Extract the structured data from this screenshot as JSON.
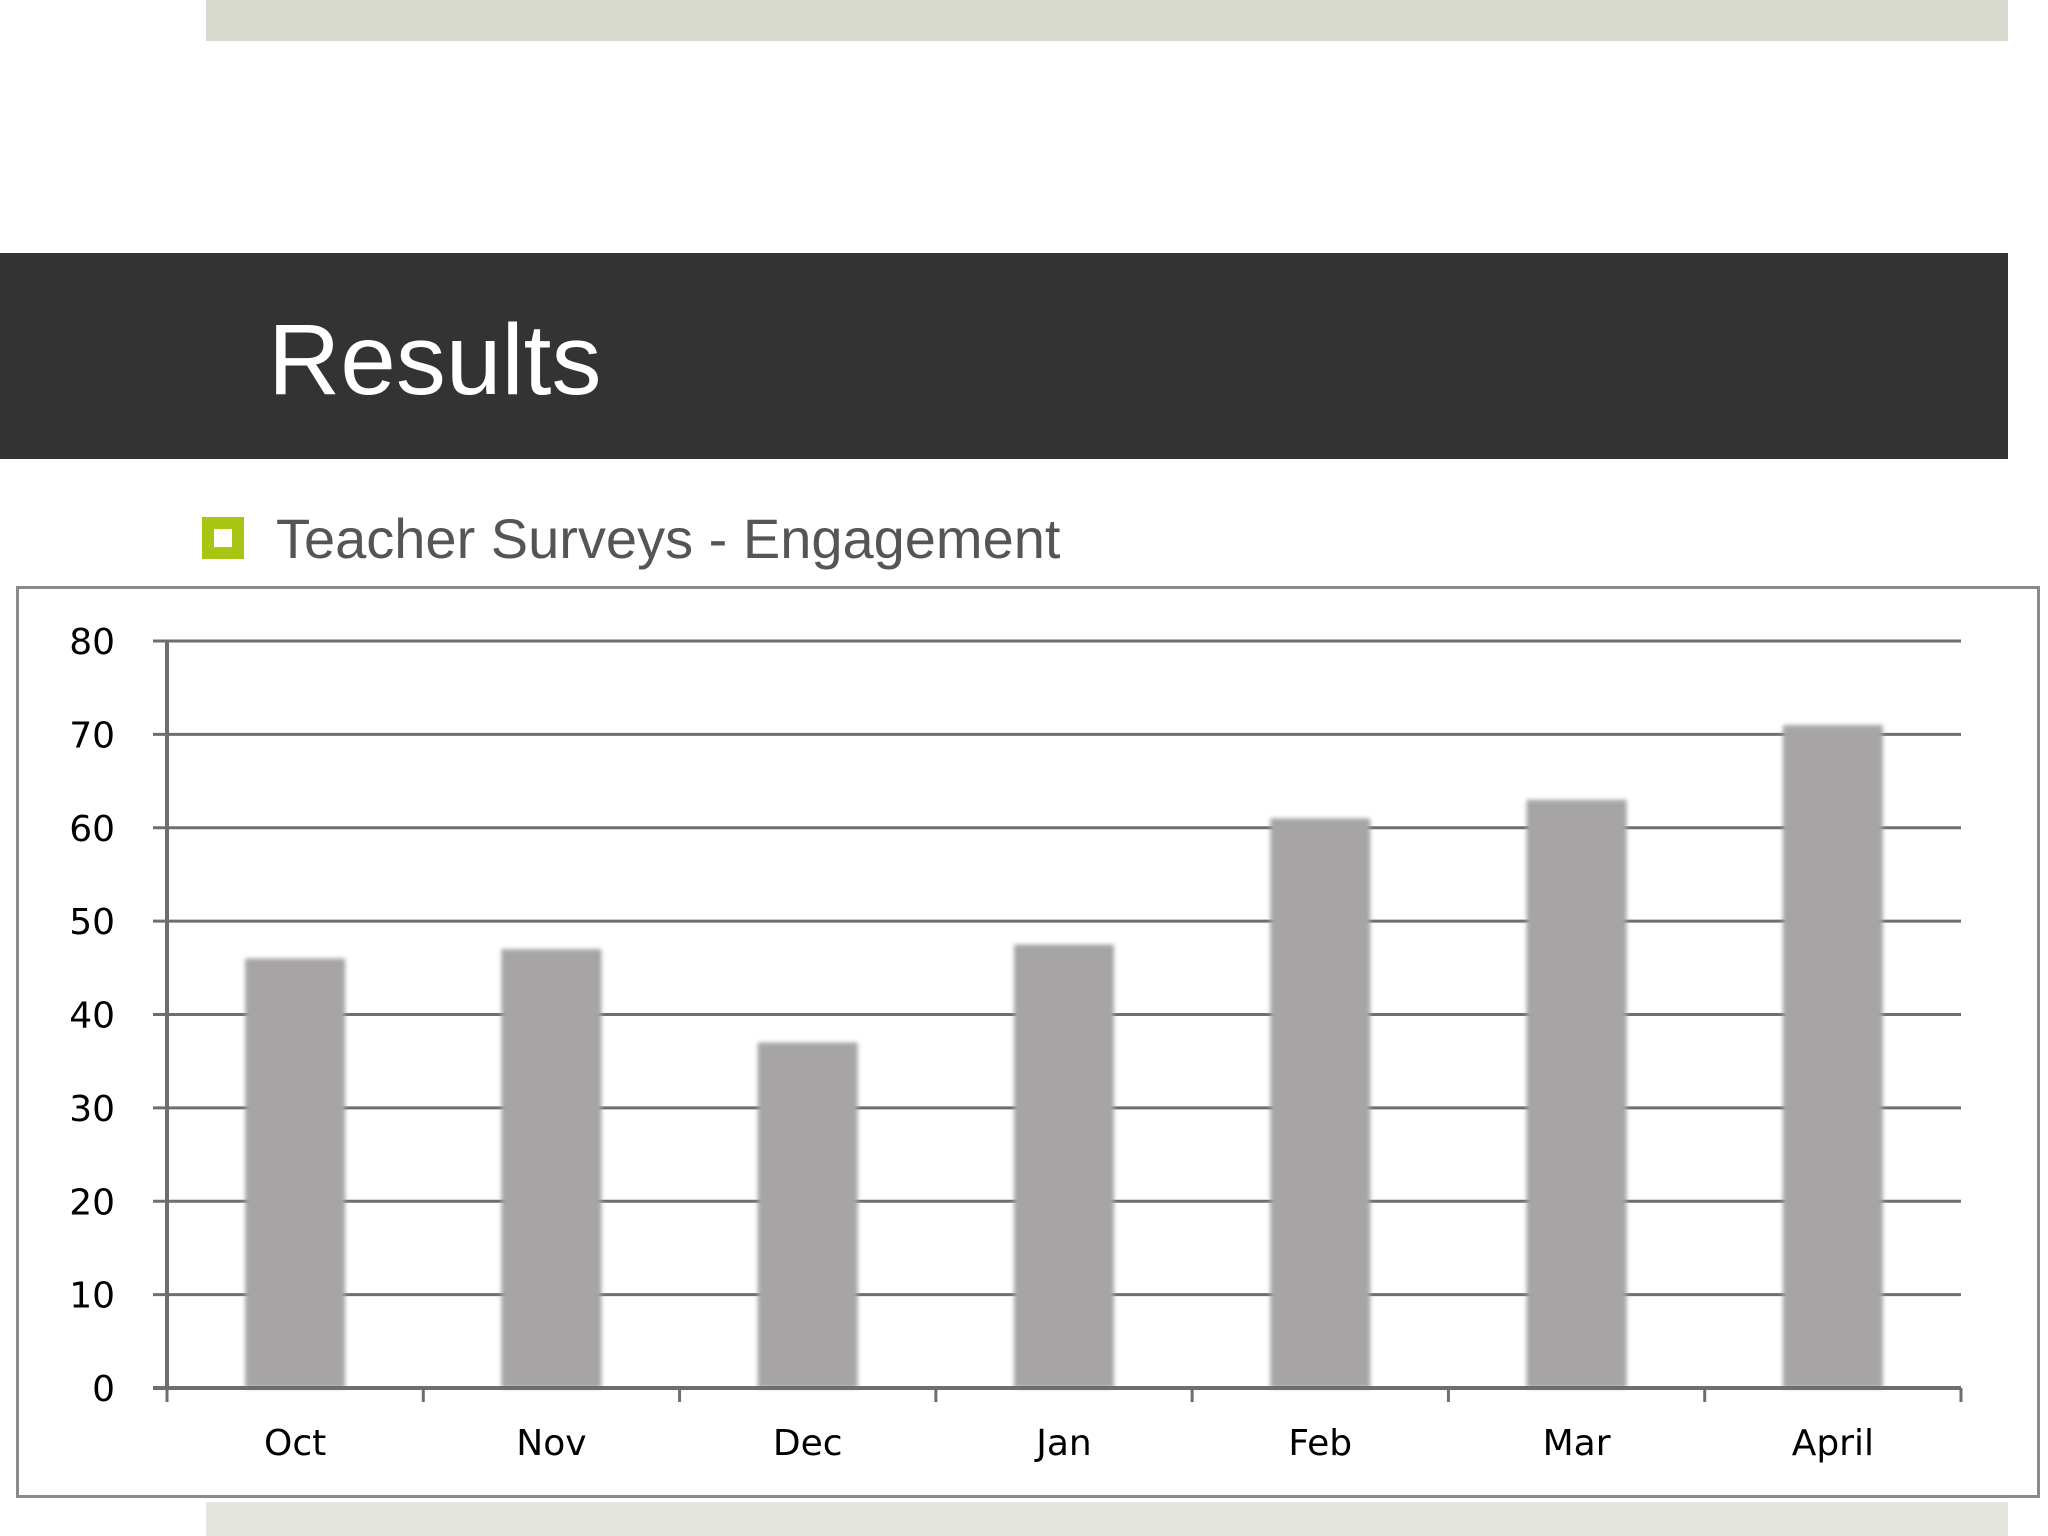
{
  "slide": {
    "title": "Results",
    "bullet_text": "Teacher Surveys - Engagement"
  },
  "colors": {
    "title_bar": "#333333",
    "accent": "#a7c613",
    "bar": "#a6a4a5",
    "gridline": "#6e6e6e"
  },
  "chart_data": {
    "type": "bar",
    "categories": [
      "Oct",
      "Nov",
      "Dec",
      "Jan",
      "Feb",
      "Mar",
      "April"
    ],
    "values": [
      46,
      47,
      37,
      47.5,
      61,
      63,
      71
    ],
    "title": "",
    "xlabel": "",
    "ylabel": "",
    "ylim": [
      0,
      80
    ],
    "yticks": [
      0,
      10,
      20,
      30,
      40,
      50,
      60,
      70,
      80
    ],
    "grid": true,
    "legend": "none"
  }
}
